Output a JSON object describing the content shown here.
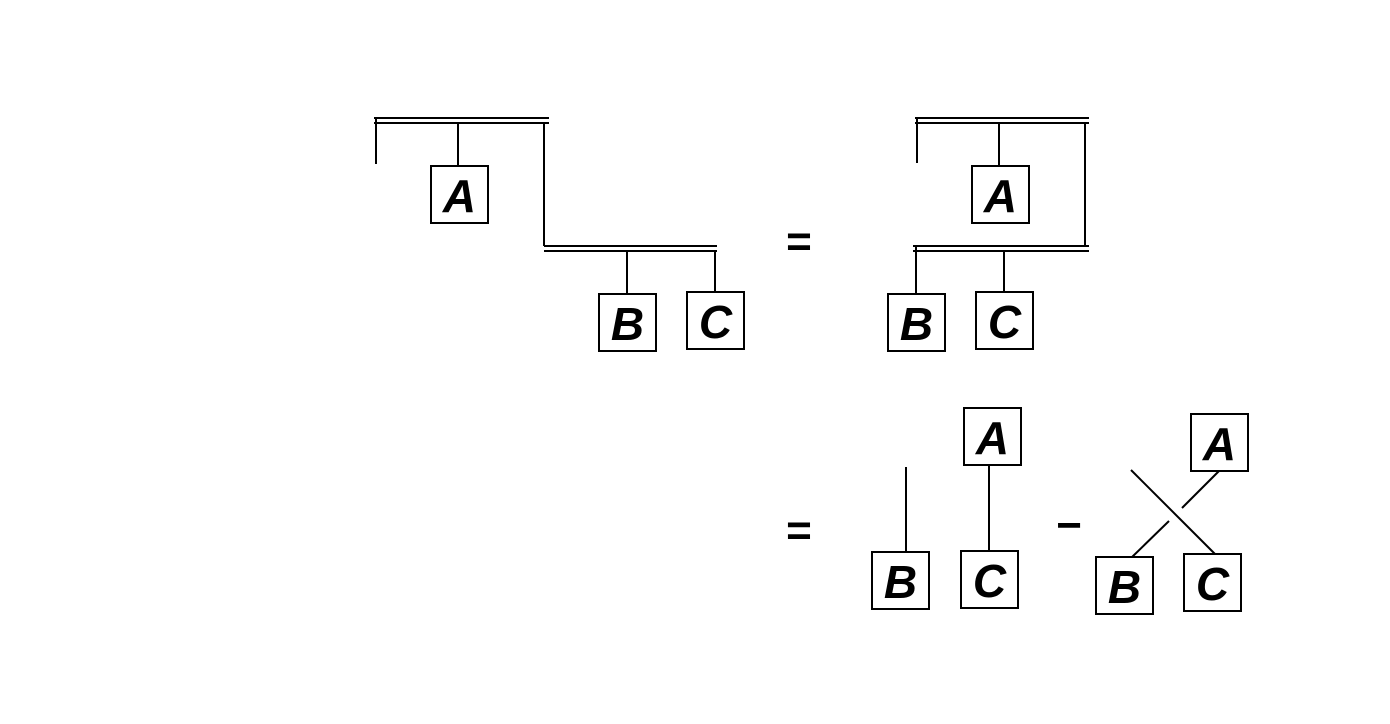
{
  "symbols": {
    "a": "A",
    "b": "B",
    "c": "C"
  },
  "operators": {
    "equals": "=",
    "minus": "−"
  }
}
